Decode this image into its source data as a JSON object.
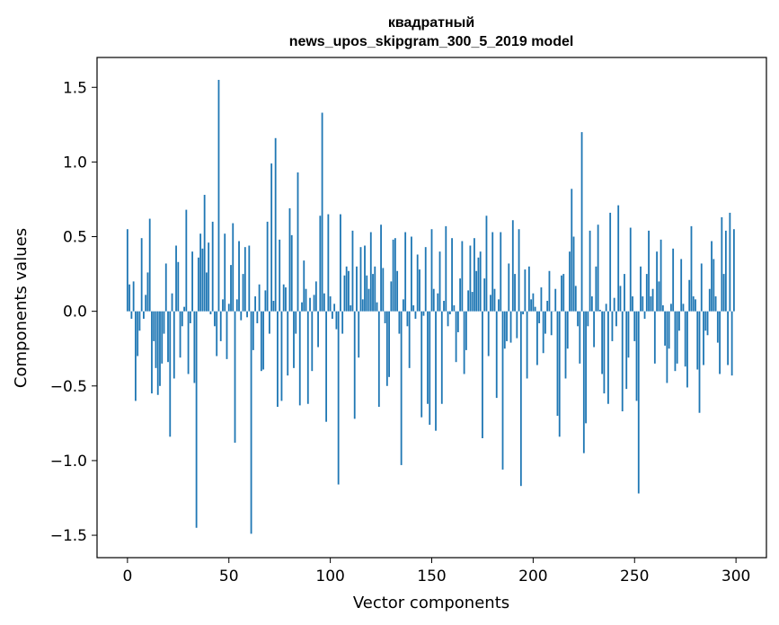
{
  "chart_data": {
    "type": "bar",
    "title_lines": [
      "квадратный",
      "news_upos_skipgram_300_5_2019 model"
    ],
    "xlabel": "Vector components",
    "ylabel": "Components values",
    "xlim": [
      -15,
      315
    ],
    "ylim": [
      -1.65,
      1.7
    ],
    "xticks": [
      0,
      50,
      100,
      150,
      200,
      250,
      300
    ],
    "xtick_labels": [
      "0",
      "50",
      "100",
      "150",
      "200",
      "250",
      "300"
    ],
    "yticks": [
      -1.5,
      -1.0,
      -0.5,
      0.0,
      0.5,
      1.0,
      1.5
    ],
    "ytick_labels": [
      "−1.5",
      "−1.0",
      "−0.5",
      "0.0",
      "0.5",
      "1.0",
      "1.5"
    ],
    "bar_color": "#1f77b4",
    "values": [
      0.55,
      0.18,
      -0.05,
      0.2,
      -0.6,
      -0.3,
      -0.13,
      0.49,
      -0.05,
      0.11,
      0.26,
      0.62,
      -0.55,
      -0.2,
      -0.38,
      -0.56,
      -0.5,
      -0.35,
      -0.15,
      0.32,
      -0.34,
      -0.84,
      0.12,
      -0.45,
      0.44,
      0.33,
      -0.31,
      -0.1,
      0.03,
      0.68,
      -0.42,
      -0.08,
      0.4,
      -0.48,
      -1.45,
      0.36,
      0.52,
      0.42,
      0.78,
      0.26,
      0.46,
      -0.02,
      0.6,
      -0.1,
      -0.3,
      1.55,
      -0.2,
      0.08,
      0.52,
      -0.32,
      0.05,
      0.31,
      0.59,
      -0.88,
      0.08,
      0.47,
      -0.06,
      0.25,
      0.43,
      -0.04,
      0.44,
      -1.49,
      -0.26,
      0.1,
      -0.08,
      0.18,
      -0.4,
      -0.39,
      0.14,
      0.6,
      -0.15,
      0.99,
      0.07,
      1.16,
      -0.64,
      0.48,
      -0.6,
      0.18,
      0.16,
      -0.43,
      0.69,
      0.51,
      -0.38,
      -0.15,
      0.93,
      -0.63,
      0.06,
      0.34,
      0.15,
      -0.62,
      0.09,
      -0.4,
      0.11,
      0.2,
      -0.24,
      0.64,
      1.33,
      0.12,
      -0.74,
      0.65,
      0.1,
      -0.05,
      0.05,
      -0.12,
      -1.16,
      0.65,
      -0.15,
      0.24,
      0.3,
      0.27,
      0.04,
      0.54,
      -0.72,
      0.3,
      -0.31,
      0.43,
      0.08,
      0.44,
      0.24,
      0.15,
      0.53,
      0.25,
      0.3,
      0.06,
      -0.64,
      0.58,
      0.29,
      -0.08,
      -0.5,
      -0.44,
      0.2,
      0.48,
      0.49,
      0.27,
      -0.15,
      -1.03,
      0.08,
      0.53,
      -0.1,
      -0.38,
      0.5,
      0.04,
      -0.05,
      0.38,
      0.28,
      -0.71,
      -0.03,
      0.43,
      -0.62,
      -0.76,
      0.55,
      0.15,
      -0.8,
      0.12,
      0.4,
      -0.62,
      0.07,
      0.57,
      -0.1,
      -0.02,
      0.49,
      0.04,
      -0.34,
      -0.14,
      0.22,
      0.47,
      -0.42,
      -0.26,
      0.14,
      0.44,
      0.13,
      0.49,
      0.27,
      0.36,
      0.4,
      -0.85,
      0.22,
      0.64,
      -0.3,
      0.11,
      0.53,
      0.15,
      -0.58,
      0.08,
      0.53,
      -1.06,
      -0.25,
      -0.2,
      0.32,
      -0.21,
      0.61,
      0.25,
      -0.18,
      0.55,
      -1.17,
      -0.02,
      0.28,
      -0.45,
      0.3,
      0.08,
      0.12,
      0.03,
      -0.36,
      -0.08,
      0.16,
      -0.28,
      -0.15,
      0.07,
      0.27,
      -0.16,
      0.0,
      0.15,
      -0.7,
      -0.84,
      0.24,
      0.25,
      -0.45,
      -0.25,
      0.4,
      0.82,
      0.5,
      0.17,
      -0.1,
      -0.35,
      1.2,
      -0.95,
      -0.75,
      -0.1,
      0.54,
      0.1,
      -0.24,
      0.3,
      0.58,
      0.01,
      -0.42,
      -0.55,
      0.05,
      -0.62,
      0.66,
      -0.2,
      0.09,
      -0.1,
      0.71,
      0.17,
      -0.67,
      0.25,
      -0.52,
      -0.31,
      0.56,
      0.1,
      -0.2,
      -0.6,
      -1.22,
      0.3,
      0.1,
      -0.05,
      0.25,
      0.54,
      0.1,
      0.15,
      -0.35,
      0.4,
      0.2,
      0.48,
      0.04,
      -0.23,
      -0.48,
      -0.25,
      0.05,
      0.42,
      -0.4,
      -0.35,
      -0.13,
      0.35,
      0.05,
      -0.37,
      -0.51,
      0.21,
      0.57,
      0.1,
      0.08,
      -0.39,
      -0.68,
      0.32,
      -0.36,
      -0.13,
      -0.16,
      0.15,
      0.47,
      0.35,
      0.1,
      -0.21,
      -0.42,
      0.63,
      0.25,
      0.54,
      -0.36,
      0.66,
      -0.43,
      0.55
    ]
  }
}
